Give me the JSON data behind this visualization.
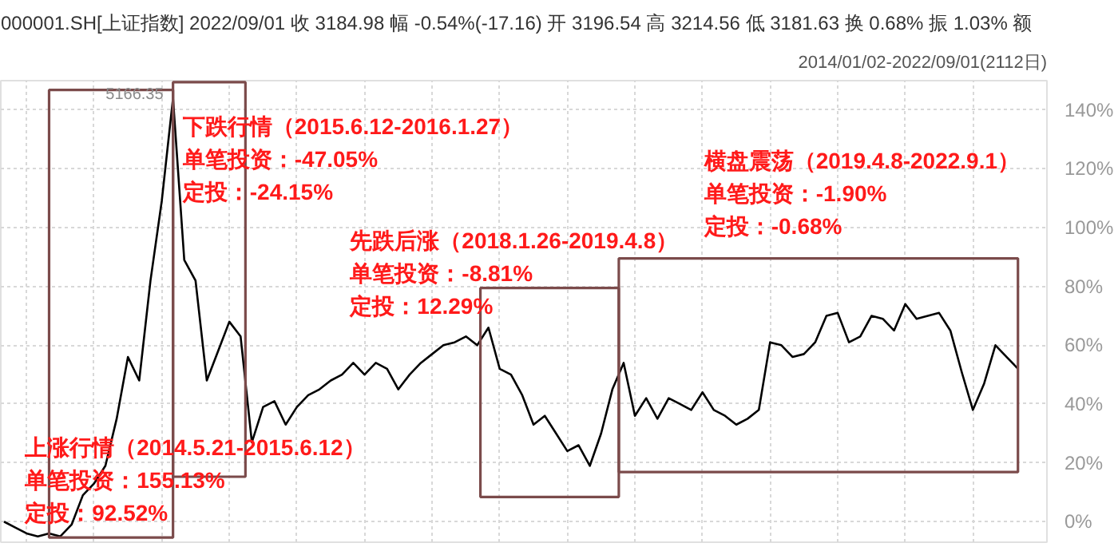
{
  "chart_data": {
    "type": "line",
    "title": "000001.SH[上证指数]   2022/09/01  收 3184.98  幅 -0.54%(-17.16)  开 3196.54  高 3214.56  低 3181.63  换 0.68%  振 1.03%  额",
    "subtitle": "2014/01/02-2022/09/01(2112日)",
    "categories": [
      null,
      null,
      null,
      null,
      null,
      null,
      null,
      null,
      null,
      null,
      null,
      null,
      null,
      null,
      null,
      null,
      null,
      null,
      null,
      null,
      null,
      null,
      null,
      null,
      null,
      null,
      null,
      null,
      null,
      null,
      null,
      null,
      null,
      null,
      null,
      null,
      null,
      null,
      null,
      null,
      null,
      null,
      null,
      null,
      null,
      null,
      null,
      null,
      null,
      null,
      null,
      null,
      null,
      null,
      null,
      null,
      null,
      null,
      null,
      null,
      null,
      null,
      null,
      null,
      null,
      null,
      null,
      null,
      null,
      null,
      null,
      null,
      null,
      null,
      null,
      null,
      null,
      null,
      null,
      null,
      null,
      null,
      null,
      null,
      null,
      null,
      null,
      null,
      null,
      null,
      null
    ],
    "series": [
      {
        "color": "#000000",
        "values": [
          0,
          -2,
          -4,
          -5,
          -4,
          -5,
          -1,
          9,
          13,
          19,
          35,
          56,
          48,
          82,
          109,
          144,
          89,
          82,
          48,
          58,
          68,
          63,
          27,
          39,
          41,
          33,
          39,
          43,
          45,
          48,
          50,
          54,
          50,
          54,
          52,
          45,
          50,
          54,
          57,
          60,
          61,
          63,
          60,
          66,
          52,
          50,
          43,
          33,
          36,
          30,
          24,
          26,
          19,
          30,
          45,
          54,
          36,
          42,
          35,
          42,
          40,
          38,
          44,
          38,
          36,
          33,
          35,
          38,
          61,
          60,
          56,
          57,
          61,
          70,
          71,
          61,
          63,
          70,
          69,
          65,
          74,
          69,
          70,
          71,
          65,
          51,
          38,
          47,
          60,
          56,
          52
        ]
      }
    ],
    "ylim": [
      -7,
      150
    ],
    "yticks": [
      {
        "value": 0,
        "label": "0%"
      },
      {
        "value": 20,
        "label": "20%"
      },
      {
        "value": 40,
        "label": "40%"
      },
      {
        "value": 60,
        "label": "60%"
      },
      {
        "value": 80,
        "label": "80%"
      },
      {
        "value": 100,
        "label": "100%"
      },
      {
        "value": 120,
        "label": "120%"
      },
      {
        "value": 140,
        "label": "140%"
      }
    ],
    "grid": true,
    "tick_labels": "y",
    "annotations": [
      "5166.35",
      "上涨行情（2014.5.21-2015.6.12）",
      "单笔投资：155.13%",
      "定投：92.52%",
      "下跌行情（2015.6.12-2016.1.27）",
      "单笔投资：-47.05%",
      "定投：-24.15%",
      "先跌后涨（2018.1.26-2019.4.8）",
      "单笔投资：-8.81%",
      "定投：12.29%",
      "横盘震荡（2019.4.8-2022.9.1）",
      "单笔投资：-1.90%",
      "定投：-0.68%"
    ]
  }
}
